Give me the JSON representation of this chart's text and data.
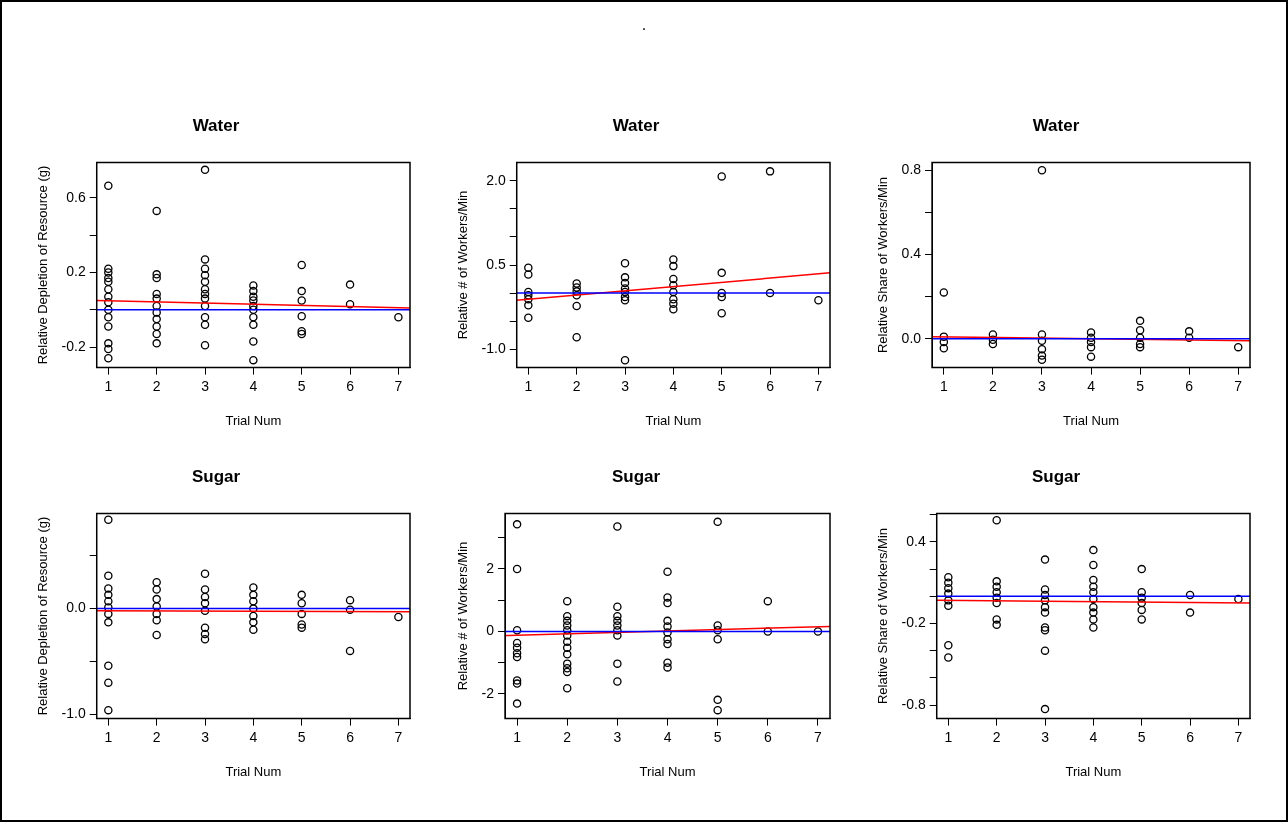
{
  "chart_data": [
    {
      "type": "scatter",
      "title": "Water",
      "xlabel": "Trial Num",
      "ylabel": "Relative Depletion of Resource (g)",
      "annotations": [
        "."
      ],
      "xlim": [
        0.76,
        7.24
      ],
      "xticks": [
        1,
        2,
        3,
        4,
        5,
        6,
        7
      ],
      "ylim": [
        -0.31,
        0.79
      ],
      "yticks": [
        -0.2,
        {
          "value": 0,
          "label": null
        },
        0.2,
        {
          "value": 0.4,
          "label": null
        },
        0.6
      ],
      "series": [
        {
          "color": "#000000",
          "marker": "circle",
          "x": [
            1,
            1,
            1,
            1,
            1,
            1,
            1,
            1,
            1,
            1,
            1,
            1,
            1,
            1,
            2,
            2,
            2,
            2,
            2,
            2,
            2,
            2,
            2,
            2,
            2,
            3,
            3,
            3,
            3,
            3,
            3,
            3,
            3,
            3,
            3,
            3,
            3,
            4,
            4,
            4,
            4,
            4,
            4,
            4,
            4,
            4,
            4,
            5,
            5,
            5,
            5,
            5,
            5,
            6,
            6,
            7
          ],
          "values": [
            0.665,
            0.22,
            0.2,
            0.17,
            0.15,
            0.11,
            0.07,
            0.04,
            0,
            -0.04,
            -0.09,
            -0.18,
            -0.21,
            -0.26,
            0.53,
            0.19,
            0.17,
            0.085,
            0.06,
            0.02,
            -0.015,
            -0.05,
            -0.09,
            -0.13,
            -0.18,
            0.75,
            0.27,
            0.22,
            0.185,
            0.15,
            0.11,
            0.085,
            0.06,
            0.02,
            -0.04,
            -0.08,
            -0.19,
            0.13,
            0.1,
            0.07,
            0.05,
            0.02,
            0,
            -0.04,
            -0.08,
            -0.17,
            -0.27,
            0.24,
            0.1,
            0.05,
            -0.035,
            -0.115,
            -0.13,
            0.135,
            0.03,
            -0.04
          ]
        },
        {
          "type": "line",
          "color": "#ff0000",
          "x": [
            0.76,
            7.24
          ],
          "values": [
            0.05,
            0.01
          ]
        }
      ],
      "ref_lines": [
        {
          "axis": "y",
          "value": 0,
          "color": "#0000ff"
        }
      ]
    },
    {
      "type": "scatter",
      "title": "Water",
      "xlabel": "Trial Num",
      "ylabel": "Relative # of Workers/Min",
      "xlim": [
        0.76,
        7.24
      ],
      "xticks": [
        1,
        2,
        3,
        4,
        5,
        6,
        7
      ],
      "ylim": [
        -1.33,
        2.33
      ],
      "yticks": [
        {
          "value": -1,
          "label": "-1.0"
        },
        {
          "value": -0.5,
          "label": null
        },
        {
          "value": 0,
          "label": null
        },
        0.5,
        {
          "value": 1,
          "label": null
        },
        {
          "value": 1.5,
          "label": null
        },
        {
          "value": 2,
          "label": "2.0"
        }
      ],
      "series": [
        {
          "color": "#000000",
          "marker": "circle",
          "x": [
            1,
            1,
            1,
            1,
            1,
            1,
            1,
            2,
            2,
            2,
            2,
            2,
            2,
            3,
            3,
            3,
            3,
            3,
            3,
            3,
            3,
            4,
            4,
            4,
            4,
            4,
            4,
            4,
            4,
            5,
            5,
            5,
            5,
            5,
            6,
            6,
            7
          ],
          "values": [
            0.45,
            0.33,
            0.02,
            -0.04,
            -0.11,
            -0.22,
            -0.44,
            0.17,
            0.1,
            0.03,
            -0.04,
            -0.23,
            -0.79,
            0.53,
            0.28,
            0.18,
            0.08,
            0.02,
            -0.07,
            -0.13,
            -1.2,
            0.6,
            0.48,
            0.25,
            0.14,
            0.02,
            -0.11,
            -0.19,
            -0.29,
            2.08,
            0.36,
            0,
            -0.07,
            -0.36,
            2.17,
            0,
            -0.13
          ]
        },
        {
          "type": "line",
          "color": "#ff0000",
          "x": [
            0.76,
            7.24
          ],
          "values": [
            -0.13,
            0.36
          ]
        }
      ],
      "ref_lines": [
        {
          "axis": "y",
          "value": 0,
          "color": "#0000ff"
        }
      ]
    },
    {
      "type": "scatter",
      "title": "Water",
      "xlabel": "Trial Num",
      "ylabel": "Relative Share of Workers/Min",
      "xlim": [
        0.76,
        7.24
      ],
      "xticks": [
        1,
        2,
        3,
        4,
        5,
        6,
        7
      ],
      "ylim": [
        -0.137,
        0.837
      ],
      "yticks": [
        {
          "value": 0,
          "label": "0.0"
        },
        {
          "value": 0.2,
          "label": null
        },
        0.4,
        {
          "value": 0.6,
          "label": null
        },
        0.8
      ],
      "series": [
        {
          "color": "#000000",
          "marker": "circle",
          "x": [
            1,
            1,
            1,
            1,
            2,
            2,
            2,
            3,
            3,
            3,
            3,
            3,
            3,
            4,
            4,
            4,
            4,
            4,
            5,
            5,
            5,
            5,
            5,
            6,
            6,
            7
          ],
          "values": [
            0.22,
            0.01,
            -0.015,
            -0.045,
            0.02,
            -0.005,
            -0.025,
            0.8,
            0.02,
            -0.01,
            -0.05,
            -0.08,
            -0.1,
            0.03,
            0.005,
            -0.015,
            -0.04,
            -0.085,
            0.085,
            0.04,
            0.005,
            -0.025,
            -0.04,
            0.035,
            0.005,
            -0.04
          ]
        },
        {
          "type": "line",
          "color": "#ff0000",
          "x": [
            0.76,
            7.24
          ],
          "values": [
            0.01,
            -0.01
          ]
        }
      ],
      "ref_lines": [
        {
          "axis": "y",
          "value": 0,
          "color": "#0000ff"
        }
      ]
    },
    {
      "type": "scatter",
      "title": "Sugar",
      "xlabel": "Trial Num",
      "ylabel": "Relative Depletion of Resource (g)",
      "xlim": [
        0.76,
        7.24
      ],
      "xticks": [
        1,
        2,
        3,
        4,
        5,
        6,
        7
      ],
      "ylim": [
        -1.04,
        0.9
      ],
      "yticks": [
        {
          "value": -1,
          "label": "-1.0"
        },
        {
          "value": -0.5,
          "label": null
        },
        {
          "value": 0,
          "label": "0.0"
        },
        {
          "value": 0.5,
          "label": null
        }
      ],
      "series": [
        {
          "color": "#000000",
          "marker": "circle",
          "x": [
            1,
            1,
            1,
            1,
            1,
            1,
            1,
            1,
            1,
            1,
            1,
            2,
            2,
            2,
            2,
            2,
            2,
            2,
            3,
            3,
            3,
            3,
            3,
            3,
            3,
            3,
            4,
            4,
            4,
            4,
            4,
            4,
            4,
            5,
            5,
            5,
            5,
            5,
            6,
            6,
            6,
            7
          ],
          "values": [
            0.84,
            0.31,
            0.19,
            0.13,
            0.07,
            0.01,
            -0.05,
            -0.13,
            -0.54,
            -0.7,
            -0.96,
            0.25,
            0.18,
            0.09,
            0.02,
            -0.05,
            -0.11,
            -0.25,
            0.33,
            0.18,
            0.11,
            0.05,
            -0.02,
            -0.18,
            -0.24,
            -0.29,
            0.2,
            0.13,
            0.07,
            0,
            -0.07,
            -0.13,
            -0.2,
            0.13,
            0.05,
            -0.05,
            -0.15,
            -0.18,
            0.08,
            -0.01,
            -0.4,
            -0.08
          ]
        },
        {
          "type": "line",
          "color": "#ff0000",
          "x": [
            0.76,
            7.24
          ],
          "values": [
            -0.02,
            -0.03
          ]
        }
      ],
      "ref_lines": [
        {
          "axis": "y",
          "value": 0,
          "color": "#0000ff"
        }
      ]
    },
    {
      "type": "scatter",
      "title": "Sugar",
      "xlabel": "Trial Num",
      "ylabel": "Relative # of Workers/Min",
      "xlim": [
        0.76,
        7.24
      ],
      "xticks": [
        1,
        2,
        3,
        4,
        5,
        6,
        7
      ],
      "ylim": [
        -2.79,
        3.78
      ],
      "yticks": [
        -2,
        {
          "value": -1,
          "label": null
        },
        0,
        {
          "value": 1,
          "label": null
        },
        2,
        {
          "value": 3,
          "label": null
        }
      ],
      "series": [
        {
          "color": "#000000",
          "marker": "circle",
          "x": [
            1,
            1,
            1,
            1,
            1,
            1,
            1,
            1,
            1,
            1,
            2,
            2,
            2,
            2,
            2,
            2,
            2,
            2,
            2,
            2,
            2,
            2,
            2,
            3,
            3,
            3,
            3,
            3,
            3,
            3,
            3,
            3,
            4,
            4,
            4,
            4,
            4,
            4,
            4,
            4,
            4,
            4,
            5,
            5,
            5,
            5,
            5,
            5,
            6,
            6,
            7
          ],
          "values": [
            3.43,
            2,
            0.04,
            -0.37,
            -0.52,
            -0.7,
            -0.82,
            -1.57,
            -1.67,
            -2.31,
            0.97,
            0.49,
            0.34,
            0.19,
            0.04,
            -0.13,
            -0.33,
            -0.52,
            -0.73,
            -1.03,
            -1.18,
            -1.3,
            -1.82,
            3.36,
            0.79,
            0.49,
            0.34,
            0.19,
            0.04,
            -0.13,
            -1.03,
            -1.6,
            1.91,
            1.09,
            0.91,
            0.34,
            0.16,
            -0.03,
            -0.25,
            -0.4,
            -1,
            -1.15,
            3.51,
            0.19,
            0.04,
            -0.25,
            -2.19,
            -2.52,
            0.97,
            0,
            0
          ]
        },
        {
          "type": "line",
          "color": "#ff0000",
          "x": [
            0.76,
            7.24
          ],
          "values": [
            -0.13,
            0.16
          ]
        }
      ],
      "ref_lines": [
        {
          "axis": "y",
          "value": 0,
          "color": "#0000ff"
        }
      ]
    },
    {
      "type": "scatter",
      "title": "Sugar",
      "xlabel": "Trial Num",
      "ylabel": "Relative Share of Workers/Min",
      "xlim": [
        0.76,
        7.24
      ],
      "xticks": [
        1,
        2,
        3,
        4,
        5,
        6,
        7
      ],
      "ylim": [
        -0.9,
        0.61
      ],
      "yticks": [
        -0.8,
        {
          "value": -0.6,
          "label": null
        },
        {
          "value": -0.4,
          "label": null
        },
        -0.2,
        {
          "value": 0,
          "label": null
        },
        {
          "value": 0.2,
          "label": null
        },
        0.4,
        {
          "value": 0.6,
          "label": null
        }
      ],
      "series": [
        {
          "color": "#000000",
          "marker": "circle",
          "x": [
            1,
            1,
            1,
            1,
            1,
            1,
            1,
            1,
            2,
            2,
            2,
            2,
            2,
            2,
            2,
            2,
            3,
            3,
            3,
            3,
            3,
            3,
            3,
            3,
            3,
            3,
            4,
            4,
            4,
            4,
            4,
            4,
            4,
            4,
            4,
            4,
            5,
            5,
            5,
            5,
            5,
            5,
            6,
            6,
            7
          ],
          "values": [
            0.14,
            0.1,
            0.06,
            0.02,
            -0.03,
            -0.07,
            -0.36,
            -0.45,
            0.56,
            0.11,
            0.07,
            0.03,
            -0.01,
            -0.05,
            -0.17,
            -0.21,
            0.27,
            0.05,
            0.01,
            -0.03,
            -0.08,
            -0.12,
            -0.23,
            -0.25,
            -0.4,
            -0.83,
            0.34,
            0.23,
            0.12,
            0.07,
            0.03,
            -0.02,
            -0.08,
            -0.12,
            -0.17,
            -0.23,
            0.2,
            0.03,
            -0.01,
            -0.05,
            -0.1,
            -0.17,
            0.01,
            -0.12,
            -0.02
          ]
        },
        {
          "type": "line",
          "color": "#ff0000",
          "x": [
            0.76,
            7.24
          ],
          "values": [
            -0.03,
            -0.05
          ]
        }
      ],
      "ref_lines": [
        {
          "axis": "y",
          "value": 0,
          "color": "#0000ff"
        }
      ]
    }
  ]
}
